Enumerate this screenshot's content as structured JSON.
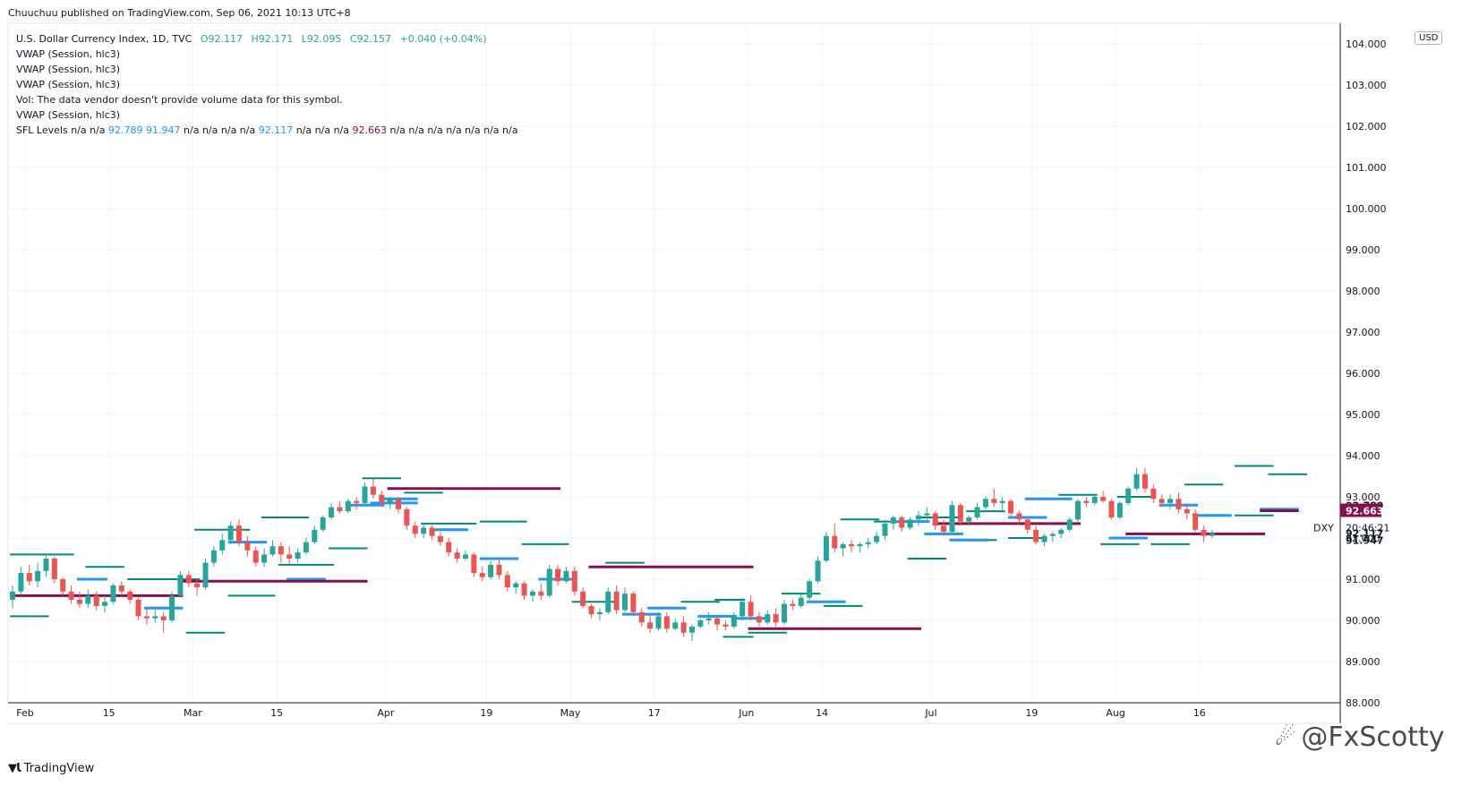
{
  "publisher": "Chuuchuu published on TradingView.com, Sep 06, 2021 10:13 UTC+8",
  "legend": {
    "symbol": "U.S. Dollar Currency Index, 1D, TVC",
    "open": "O92.117",
    "high": "H92.171",
    "low": "L92.095",
    "close": "C92.157",
    "change": "+0.040 (+0.04%)",
    "vwap1": "VWAP (Session, hlc3)",
    "vwap2": "VWAP (Session, hlc3)",
    "vwap3": "VWAP (Session, hlc3)",
    "vol": "Vol: The data vendor doesn't provide volume data for this symbol.",
    "vwap4": "VWAP (Session, hlc3)",
    "sfl_label": "SFL Levels",
    "sfl_values": [
      {
        "t": "n/a",
        "c": "muted"
      },
      {
        "t": "n/a",
        "c": "muted"
      },
      {
        "t": "92.789",
        "c": "blue"
      },
      {
        "t": "91.947",
        "c": "blue"
      },
      {
        "t": "n/a",
        "c": "muted"
      },
      {
        "t": "n/a",
        "c": "muted"
      },
      {
        "t": "n/a",
        "c": "muted"
      },
      {
        "t": "n/a",
        "c": "muted"
      },
      {
        "t": "92.117",
        "c": "blue"
      },
      {
        "t": "n/a",
        "c": "muted"
      },
      {
        "t": "n/a",
        "c": "muted"
      },
      {
        "t": "n/a",
        "c": "muted"
      },
      {
        "t": "92.663",
        "c": "maroon"
      },
      {
        "t": "n/a",
        "c": "muted"
      },
      {
        "t": "n/a",
        "c": "muted"
      },
      {
        "t": "n/a",
        "c": "muted"
      },
      {
        "t": "n/a",
        "c": "muted"
      },
      {
        "t": "n/a",
        "c": "muted"
      },
      {
        "t": "n/a",
        "c": "muted"
      },
      {
        "t": "n/a",
        "c": "muted"
      }
    ]
  },
  "currency": "USD",
  "symbol_tag": "DXY",
  "countdown": "20:46:21",
  "brand": "TradingView",
  "watermark": "@FxScotty",
  "colors": {
    "up": "#26a69a",
    "down": "#ef5350",
    "blue": "#2196f3",
    "maroon": "#880e4f",
    "teal_level": "#00897b",
    "grid": "#f0f3fa",
    "axis": "#131722"
  },
  "chart_data": {
    "type": "candlestick",
    "title": "U.S. Dollar Currency Index, 1D, TVC",
    "ylim": [
      88.0,
      104.5
    ],
    "y_ticks": [
      "88.000",
      "89.000",
      "90.000",
      "91.000",
      "92.000",
      "93.000",
      "94.000",
      "95.000",
      "96.000",
      "97.000",
      "98.000",
      "99.000",
      "100.000",
      "101.000",
      "102.000",
      "103.000",
      "104.000"
    ],
    "x_ticks": [
      {
        "label": "Feb",
        "i": 0
      },
      {
        "label": "15",
        "i": 10
      },
      {
        "label": "Mar",
        "i": 20
      },
      {
        "label": "15",
        "i": 30
      },
      {
        "label": "Apr",
        "i": 43
      },
      {
        "label": "19",
        "i": 55
      },
      {
        "label": "May",
        "i": 65
      },
      {
        "label": "17",
        "i": 75
      },
      {
        "label": "Jun",
        "i": 86
      },
      {
        "label": "14",
        "i": 95
      },
      {
        "label": "Jul",
        "i": 108
      },
      {
        "label": "19",
        "i": 120
      },
      {
        "label": "Aug",
        "i": 130
      },
      {
        "label": "16",
        "i": 140
      }
    ],
    "candles": [
      [
        90.5,
        90.85,
        90.3,
        90.7
      ],
      [
        90.7,
        91.3,
        90.6,
        91.15
      ],
      [
        91.15,
        91.35,
        90.85,
        90.95
      ],
      [
        90.95,
        91.4,
        90.8,
        91.2
      ],
      [
        91.2,
        91.6,
        91.05,
        91.5
      ],
      [
        91.5,
        91.55,
        90.9,
        91.0
      ],
      [
        91.0,
        91.05,
        90.6,
        90.7
      ],
      [
        90.7,
        90.85,
        90.4,
        90.5
      ],
      [
        90.5,
        90.7,
        90.3,
        90.4
      ],
      [
        90.4,
        90.75,
        90.3,
        90.6
      ],
      [
        90.6,
        90.7,
        90.25,
        90.35
      ],
      [
        90.35,
        90.6,
        90.2,
        90.45
      ],
      [
        90.45,
        90.9,
        90.4,
        90.85
      ],
      [
        90.85,
        90.95,
        90.6,
        90.7
      ],
      [
        90.7,
        90.75,
        90.4,
        90.5
      ],
      [
        90.5,
        90.55,
        90.0,
        90.1
      ],
      [
        90.1,
        90.3,
        89.9,
        90.05
      ],
      [
        90.05,
        90.25,
        89.95,
        90.1
      ],
      [
        90.1,
        90.2,
        89.7,
        90.0
      ],
      [
        90.0,
        90.7,
        89.95,
        90.6
      ],
      [
        90.6,
        91.2,
        90.55,
        91.1
      ],
      [
        91.1,
        91.2,
        90.8,
        90.9
      ],
      [
        90.9,
        91.0,
        90.6,
        90.8
      ],
      [
        90.8,
        91.5,
        90.75,
        91.4
      ],
      [
        91.4,
        91.8,
        91.3,
        91.7
      ],
      [
        91.7,
        92.1,
        91.6,
        91.95
      ],
      [
        91.95,
        92.4,
        91.85,
        92.3
      ],
      [
        92.3,
        92.45,
        91.8,
        91.9
      ],
      [
        91.9,
        92.05,
        91.55,
        91.7
      ],
      [
        91.7,
        91.8,
        91.3,
        91.4
      ],
      [
        91.4,
        91.75,
        91.3,
        91.6
      ],
      [
        91.6,
        91.95,
        91.55,
        91.8
      ],
      [
        91.8,
        91.9,
        91.4,
        91.6
      ],
      [
        91.6,
        91.8,
        91.35,
        91.5
      ],
      [
        91.5,
        91.75,
        91.4,
        91.65
      ],
      [
        91.65,
        92.0,
        91.6,
        91.9
      ],
      [
        91.9,
        92.3,
        91.85,
        92.2
      ],
      [
        92.2,
        92.55,
        92.15,
        92.5
      ],
      [
        92.5,
        92.85,
        92.45,
        92.75
      ],
      [
        92.75,
        92.9,
        92.6,
        92.65
      ],
      [
        92.65,
        92.95,
        92.6,
        92.9
      ],
      [
        92.9,
        93.0,
        92.7,
        92.85
      ],
      [
        92.85,
        93.35,
        92.8,
        93.25
      ],
      [
        93.25,
        93.45,
        92.95,
        93.05
      ],
      [
        93.05,
        93.15,
        92.75,
        92.85
      ],
      [
        92.85,
        93.0,
        92.7,
        92.95
      ],
      [
        92.95,
        93.0,
        92.6,
        92.7
      ],
      [
        92.7,
        92.75,
        92.2,
        92.3
      ],
      [
        92.3,
        92.4,
        92.0,
        92.1
      ],
      [
        92.1,
        92.35,
        92.0,
        92.25
      ],
      [
        92.25,
        92.3,
        91.95,
        92.05
      ],
      [
        92.05,
        92.15,
        91.8,
        91.9
      ],
      [
        91.9,
        92.0,
        91.55,
        91.65
      ],
      [
        91.65,
        91.75,
        91.4,
        91.5
      ],
      [
        91.5,
        91.7,
        91.45,
        91.6
      ],
      [
        91.6,
        91.65,
        91.05,
        91.15
      ],
      [
        91.15,
        91.3,
        90.95,
        91.05
      ],
      [
        91.05,
        91.45,
        91.0,
        91.35
      ],
      [
        91.35,
        91.5,
        91.0,
        91.1
      ],
      [
        91.1,
        91.2,
        90.7,
        90.8
      ],
      [
        90.8,
        90.95,
        90.65,
        90.9
      ],
      [
        90.9,
        90.95,
        90.5,
        90.6
      ],
      [
        90.6,
        90.75,
        90.45,
        90.7
      ],
      [
        90.7,
        90.9,
        90.5,
        90.6
      ],
      [
        90.6,
        91.35,
        90.55,
        91.25
      ],
      [
        91.25,
        91.35,
        90.85,
        90.95
      ],
      [
        90.95,
        91.3,
        90.9,
        91.2
      ],
      [
        91.2,
        91.3,
        90.6,
        90.7
      ],
      [
        90.7,
        90.8,
        90.3,
        90.35
      ],
      [
        90.35,
        90.4,
        90.05,
        90.15
      ],
      [
        90.15,
        90.3,
        90.0,
        90.2
      ],
      [
        90.2,
        90.8,
        90.15,
        90.7
      ],
      [
        90.7,
        90.85,
        90.15,
        90.25
      ],
      [
        90.25,
        90.8,
        90.2,
        90.65
      ],
      [
        90.65,
        90.7,
        90.1,
        90.2
      ],
      [
        90.2,
        90.3,
        89.85,
        89.95
      ],
      [
        89.95,
        90.15,
        89.7,
        89.8
      ],
      [
        89.8,
        90.2,
        89.75,
        90.1
      ],
      [
        90.1,
        90.2,
        89.7,
        89.8
      ],
      [
        89.8,
        90.05,
        89.75,
        89.95
      ],
      [
        89.95,
        90.1,
        89.6,
        89.7
      ],
      [
        89.7,
        89.9,
        89.5,
        89.85
      ],
      [
        89.85,
        90.05,
        89.8,
        90.0
      ],
      [
        90.0,
        90.2,
        89.9,
        90.05
      ],
      [
        90.05,
        90.1,
        89.75,
        89.9
      ],
      [
        89.9,
        90.0,
        89.75,
        89.85
      ],
      [
        89.85,
        90.2,
        89.8,
        90.1
      ],
      [
        90.1,
        90.55,
        90.0,
        90.45
      ],
      [
        90.45,
        90.6,
        90.0,
        90.1
      ],
      [
        90.1,
        90.2,
        89.85,
        89.95
      ],
      [
        89.95,
        90.25,
        89.9,
        90.15
      ],
      [
        90.15,
        90.3,
        89.85,
        89.95
      ],
      [
        89.95,
        90.5,
        89.9,
        90.4
      ],
      [
        90.4,
        90.5,
        90.25,
        90.35
      ],
      [
        90.35,
        90.65,
        90.3,
        90.55
      ],
      [
        90.55,
        91.0,
        90.5,
        90.95
      ],
      [
        90.95,
        91.55,
        90.9,
        91.45
      ],
      [
        91.45,
        92.15,
        91.4,
        92.05
      ],
      [
        92.05,
        92.35,
        91.65,
        91.75
      ],
      [
        91.75,
        91.9,
        91.55,
        91.85
      ],
      [
        91.85,
        91.95,
        91.65,
        91.8
      ],
      [
        91.8,
        91.9,
        91.65,
        91.85
      ],
      [
        91.85,
        92.0,
        91.75,
        91.9
      ],
      [
        91.9,
        92.15,
        91.85,
        92.05
      ],
      [
        92.05,
        92.45,
        91.95,
        92.35
      ],
      [
        92.35,
        92.55,
        92.2,
        92.5
      ],
      [
        92.5,
        92.55,
        92.15,
        92.25
      ],
      [
        92.25,
        92.5,
        92.2,
        92.45
      ],
      [
        92.45,
        92.65,
        92.3,
        92.55
      ],
      [
        92.55,
        92.75,
        92.4,
        92.6
      ],
      [
        92.6,
        92.65,
        92.2,
        92.3
      ],
      [
        92.3,
        92.45,
        92.05,
        92.15
      ],
      [
        92.15,
        92.9,
        92.1,
        92.8
      ],
      [
        92.8,
        92.85,
        92.3,
        92.4
      ],
      [
        92.4,
        92.55,
        92.3,
        92.5
      ],
      [
        92.5,
        92.85,
        92.45,
        92.75
      ],
      [
        92.75,
        93.0,
        92.7,
        92.95
      ],
      [
        92.95,
        93.2,
        92.75,
        92.85
      ],
      [
        92.85,
        93.0,
        92.65,
        92.9
      ],
      [
        92.9,
        92.95,
        92.55,
        92.6
      ],
      [
        92.6,
        92.65,
        92.35,
        92.45
      ],
      [
        92.45,
        92.5,
        92.1,
        92.2
      ],
      [
        92.2,
        92.3,
        91.85,
        91.9
      ],
      [
        91.9,
        92.1,
        91.8,
        92.05
      ],
      [
        92.05,
        92.15,
        91.9,
        92.1
      ],
      [
        92.1,
        92.25,
        92.0,
        92.2
      ],
      [
        92.2,
        92.5,
        92.15,
        92.45
      ],
      [
        92.45,
        92.95,
        92.4,
        92.9
      ],
      [
        92.9,
        93.0,
        92.75,
        92.85
      ],
      [
        92.85,
        93.05,
        92.8,
        93.0
      ],
      [
        93.0,
        93.15,
        92.85,
        92.9
      ],
      [
        92.9,
        92.95,
        92.45,
        92.5
      ],
      [
        92.5,
        92.9,
        92.45,
        92.85
      ],
      [
        92.85,
        93.25,
        92.8,
        93.2
      ],
      [
        93.2,
        93.7,
        93.15,
        93.55
      ],
      [
        93.55,
        93.7,
        93.1,
        93.2
      ],
      [
        93.2,
        93.3,
        92.85,
        92.95
      ],
      [
        92.95,
        93.05,
        92.75,
        92.85
      ],
      [
        92.85,
        93.05,
        92.7,
        92.95
      ],
      [
        92.95,
        93.1,
        92.6,
        92.7
      ],
      [
        92.7,
        92.85,
        92.45,
        92.6
      ],
      [
        92.6,
        92.7,
        92.15,
        92.2
      ],
      [
        92.2,
        92.3,
        91.9,
        92.05
      ],
      [
        92.05,
        92.2,
        92.0,
        92.117
      ]
    ],
    "levels": {
      "teal": [
        [
          0,
          7,
          91.6
        ],
        [
          14,
          22,
          91.0
        ],
        [
          9,
          13,
          91.3
        ],
        [
          0,
          4,
          90.1
        ],
        [
          21,
          25,
          89.7
        ],
        [
          26,
          31,
          90.6
        ],
        [
          32,
          38,
          91.35
        ],
        [
          38,
          42,
          91.75
        ],
        [
          22,
          28,
          92.2
        ],
        [
          30,
          35,
          92.5
        ],
        [
          42,
          46,
          93.45
        ],
        [
          47,
          51,
          93.1
        ],
        [
          49,
          55,
          92.35
        ],
        [
          56,
          61,
          92.4
        ],
        [
          61,
          66,
          91.85
        ],
        [
          71,
          75,
          91.4
        ],
        [
          67,
          72,
          90.45
        ],
        [
          80,
          84,
          90.45
        ],
        [
          84,
          87,
          90.5
        ],
        [
          85,
          88,
          89.6
        ],
        [
          88,
          92,
          89.7
        ],
        [
          92,
          96,
          90.65
        ],
        [
          97,
          101,
          90.35
        ],
        [
          99,
          103,
          92.45
        ],
        [
          103,
          108,
          92.4
        ],
        [
          108,
          113,
          92.5
        ],
        [
          107,
          111,
          91.5
        ],
        [
          113,
          117,
          91.95
        ],
        [
          114,
          118,
          92.65
        ],
        [
          119,
          123,
          92.0
        ],
        [
          125,
          129,
          93.05
        ],
        [
          130,
          134,
          91.85
        ],
        [
          136,
          140,
          91.85
        ],
        [
          132,
          136,
          93.0
        ],
        [
          140,
          144,
          93.3
        ],
        [
          146,
          150,
          93.75
        ],
        [
          150,
          154,
          93.55
        ],
        [
          146,
          150,
          92.55
        ]
      ],
      "blue": [
        [
          8,
          11,
          91.0
        ],
        [
          16,
          20,
          90.3
        ],
        [
          26,
          30,
          91.9
        ],
        [
          33,
          37,
          91.0
        ],
        [
          40,
          44,
          92.8
        ],
        [
          43,
          48,
          92.85
        ],
        [
          44,
          48,
          92.95
        ],
        [
          50,
          54,
          92.2
        ],
        [
          56,
          60,
          91.5
        ],
        [
          63,
          67,
          91.0
        ],
        [
          76,
          80,
          90.3
        ],
        [
          73,
          77,
          90.15
        ],
        [
          82,
          86,
          90.1
        ],
        [
          86,
          90,
          90.05
        ],
        [
          95,
          99,
          90.45
        ],
        [
          105,
          109,
          92.4
        ],
        [
          109,
          113,
          92.1
        ],
        [
          112,
          116,
          91.95
        ],
        [
          119,
          123,
          92.5
        ],
        [
          121,
          126,
          92.95
        ],
        [
          131,
          135,
          92.0
        ],
        [
          137,
          141,
          92.8
        ],
        [
          141,
          145,
          92.55
        ],
        [
          149,
          153,
          92.7
        ]
      ],
      "maroon": [
        [
          0,
          20,
          90.6
        ],
        [
          20,
          42,
          90.95
        ],
        [
          45,
          65,
          93.2
        ],
        [
          69,
          88,
          91.3
        ],
        [
          88,
          108,
          89.8
        ],
        [
          110,
          127,
          92.35
        ],
        [
          133,
          149,
          92.1
        ],
        [
          149,
          153,
          92.663
        ]
      ]
    },
    "price_labels": [
      {
        "text": "92.789",
        "value": 92.789,
        "color": "#131722",
        "bold": true
      },
      {
        "text": "92.663",
        "value": 92.663,
        "color": "#880e4f",
        "bold": true,
        "boxed": true
      },
      {
        "text": "92.117",
        "value": 92.117,
        "color": "#131722",
        "bold": true
      },
      {
        "text": "91.947",
        "value": 91.947,
        "color": "#131722",
        "bold": true
      }
    ]
  }
}
